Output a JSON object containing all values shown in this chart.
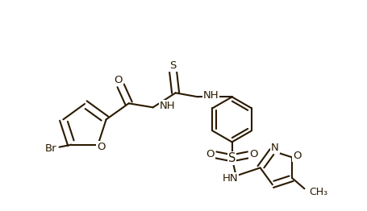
{
  "bg_color": "#ffffff",
  "line_color": "#2a1a00",
  "bond_lw": 1.5,
  "dbo": 0.006,
  "fs": 9.5,
  "xlim": [
    0.0,
    4.55
  ],
  "ylim": [
    0.0,
    2.62
  ]
}
